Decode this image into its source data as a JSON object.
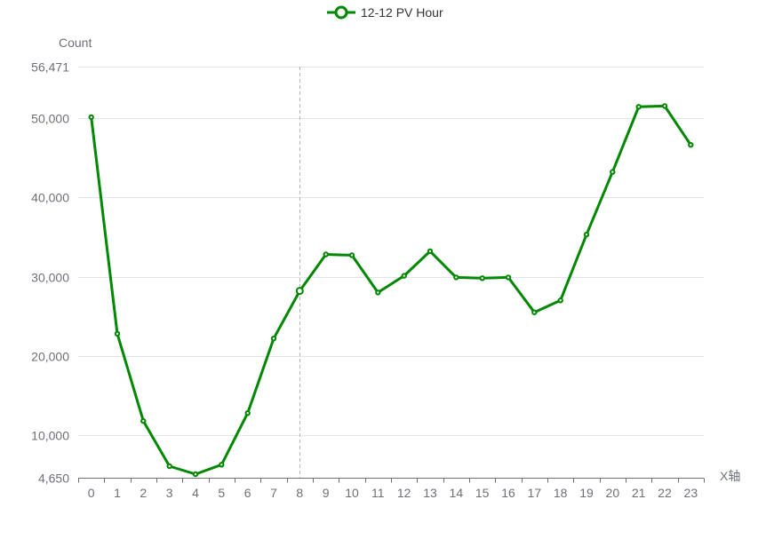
{
  "chart_data": {
    "type": "line",
    "legend": {
      "placement": "top-center"
    },
    "ylabel": "Count",
    "xlabel": "X轴",
    "ylim": [
      4650,
      56471
    ],
    "y_ticks": [
      "4,650",
      "10,000",
      "20,000",
      "30,000",
      "40,000",
      "50,000",
      "56,471"
    ],
    "y_tick_values": [
      4650,
      10000,
      20000,
      30000,
      40000,
      50000,
      56471
    ],
    "categories": [
      "0",
      "1",
      "2",
      "3",
      "4",
      "5",
      "6",
      "7",
      "8",
      "9",
      "10",
      "11",
      "12",
      "13",
      "14",
      "15",
      "16",
      "17",
      "18",
      "19",
      "20",
      "21",
      "22",
      "23"
    ],
    "highlight_category": "8",
    "series": [
      {
        "name": "12-12 PV Hour",
        "color": "#008800",
        "values": [
          50100,
          22800,
          11800,
          6100,
          5100,
          6300,
          12800,
          22200,
          28200,
          32800,
          32700,
          28000,
          30100,
          33200,
          29900,
          29800,
          29900,
          25500,
          27000,
          35300,
          43200,
          51400,
          51500,
          46600
        ]
      }
    ]
  }
}
